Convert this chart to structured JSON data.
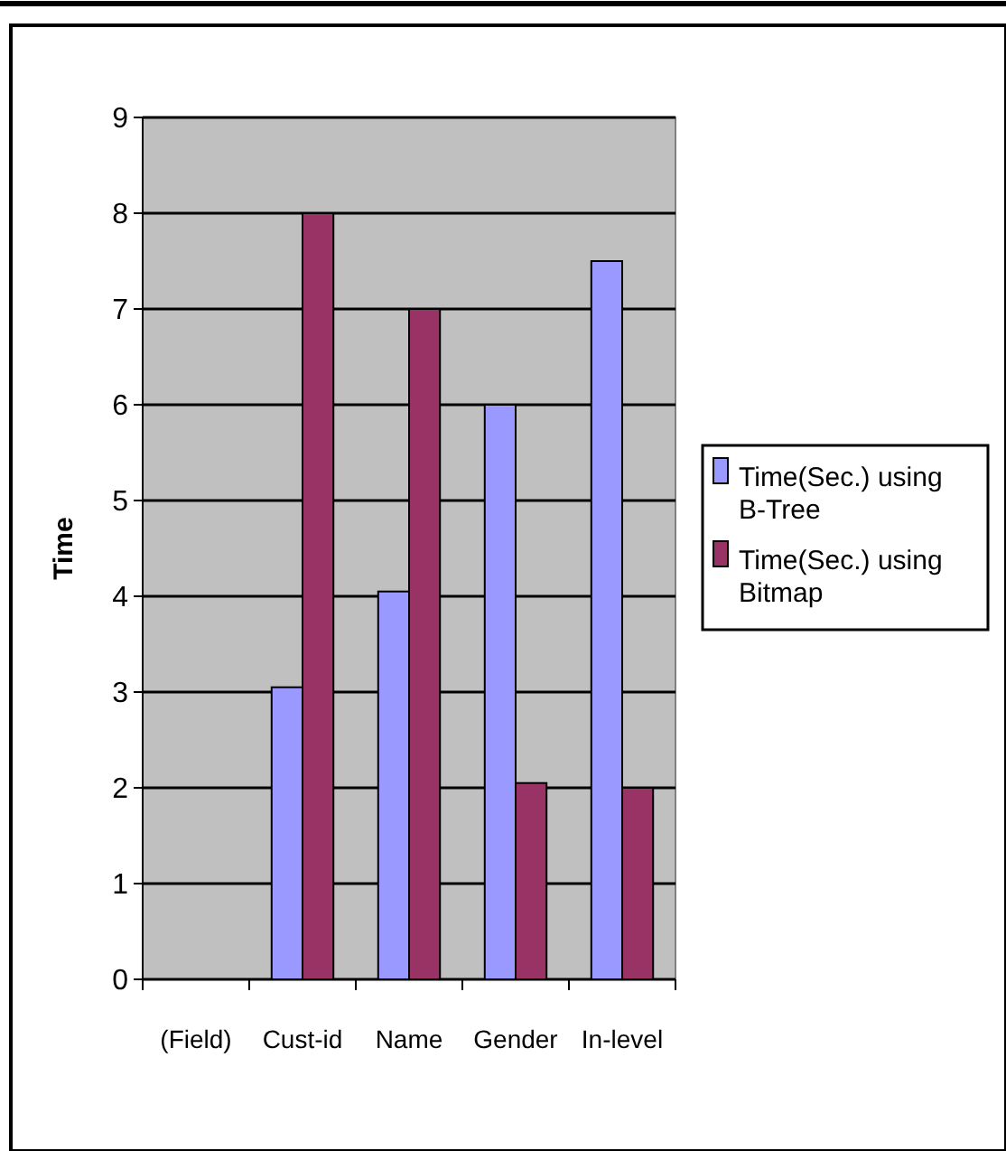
{
  "chart_data": {
    "type": "bar",
    "ylabel": "Time",
    "categories": [
      "(Field)",
      "Cust-id",
      "Name",
      "Gender",
      "In-level"
    ],
    "series": [
      {
        "name": "Time(Sec.) using B-Tree",
        "color": "#9999ff",
        "values": [
          null,
          3.05,
          4.05,
          6,
          7.5
        ]
      },
      {
        "name": "Time(Sec.) using Bitmap",
        "color": "#993366",
        "values": [
          null,
          8,
          7,
          2.05,
          2
        ]
      }
    ],
    "ylim": [
      0,
      9
    ],
    "yticks": [
      0,
      1,
      2,
      3,
      4,
      5,
      6,
      7,
      8,
      9
    ],
    "grid": "y",
    "legend": "right"
  }
}
